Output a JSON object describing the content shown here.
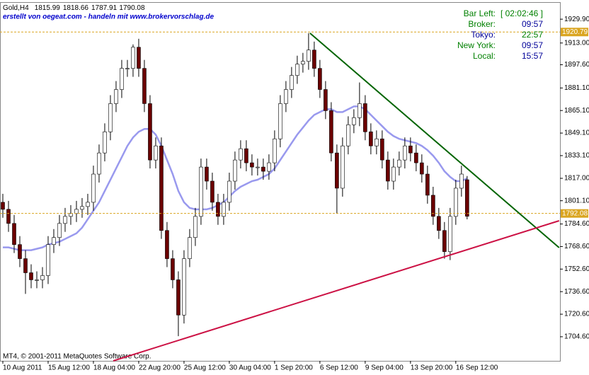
{
  "chart_data": {
    "type": "candlestick",
    "title": "Gold,H4",
    "subtitle": "erstellt von oegeat.com - handeln mit www.brokervorschlag.de",
    "footer": "MT4, © 2001-2011 MetaQuotes Software Corp.",
    "up_color": "#ffffff",
    "down_color": "#6b0000",
    "ylim": [
      1687.5,
      1941
    ],
    "xlim": [
      -0.5,
      98.4
    ],
    "yticks": [
      {
        "value": 1929.9,
        "label": "1929.90"
      },
      {
        "value": 1913,
        "label": "1913.00"
      },
      {
        "value": 1897.6,
        "label": "1897.60"
      },
      {
        "value": 1881.1,
        "label": "1881.10"
      },
      {
        "value": 1865.1,
        "label": "1865.10"
      },
      {
        "value": 1849.1,
        "label": "1849.10"
      },
      {
        "value": 1833.1,
        "label": "1833.10"
      },
      {
        "value": 1817,
        "label": "1817.00"
      },
      {
        "value": 1801.1,
        "label": "1801.10"
      },
      {
        "value": 1784.6,
        "label": "1784.60"
      },
      {
        "value": 1768.6,
        "label": "1768.60"
      },
      {
        "value": 1752.6,
        "label": "1752.60"
      },
      {
        "value": 1736.6,
        "label": "1736.60"
      },
      {
        "value": 1720.6,
        "label": "1720.60"
      },
      {
        "value": 1704.6,
        "label": "1704.60"
      }
    ],
    "xticks": [
      {
        "value": 0,
        "label": "10 Aug 2011"
      },
      {
        "value": 8,
        "label": "15 Aug 12:00"
      },
      {
        "value": 16,
        "label": "18 Aug 04:00"
      },
      {
        "value": 24,
        "label": "22 Aug 20:00"
      },
      {
        "value": 32,
        "label": "25 Aug 12:00"
      },
      {
        "value": 40,
        "label": "30 Aug 04:00"
      },
      {
        "value": 48,
        "label": "1 Sep 20:00"
      },
      {
        "value": 56,
        "label": "6 Sep 12:00"
      },
      {
        "value": 64,
        "label": "9 Sep 04:00"
      },
      {
        "value": 72,
        "label": "13 Sep 20:00"
      },
      {
        "value": 80,
        "label": "16 Sep 12:00"
      }
    ],
    "open": [
      1800,
      1795,
      1785,
      1770,
      1760,
      1750,
      1745,
      1745,
      1748,
      1770,
      1775,
      1785,
      1790,
      1792,
      1795,
      1797,
      1800,
      1820,
      1835,
      1850,
      1870,
      1880,
      1895,
      1895,
      1910,
      1895,
      1870,
      1830,
      1840,
      1780,
      1760,
      1745,
      1720,
      1760,
      1775,
      1790,
      1825,
      1815,
      1800,
      1790,
      1800,
      1815,
      1830,
      1838,
      1828,
      1825,
      1825,
      1822,
      1828,
      1845,
      1870,
      1880,
      1890,
      1898,
      1900,
      1908,
      1895,
      1880,
      1865,
      1835,
      1810,
      1840,
      1855,
      1860,
      1870,
      1850,
      1840,
      1845,
      1830,
      1815,
      1825,
      1830,
      1840,
      1835,
      1828,
      1820,
      1805,
      1790,
      1780,
      1765,
      1790,
      1810,
      1815.99
    ],
    "high": [
      1806,
      1801,
      1791,
      1776,
      1766,
      1756,
      1751,
      1754,
      1776,
      1781,
      1791,
      1796,
      1798,
      1801,
      1803,
      1806,
      1826,
      1841,
      1856,
      1876,
      1886,
      1901,
      1901,
      1912,
      1916,
      1901,
      1876,
      1846,
      1846,
      1786,
      1766,
      1751,
      1766,
      1781,
      1796,
      1831,
      1831,
      1821,
      1806,
      1806,
      1821,
      1836,
      1844,
      1844,
      1834,
      1831,
      1831,
      1834,
      1851,
      1876,
      1886,
      1896,
      1904,
      1906,
      1920,
      1914,
      1901,
      1886,
      1871,
      1841,
      1846,
      1861,
      1866,
      1885,
      1876,
      1856,
      1851,
      1851,
      1836,
      1831,
      1836,
      1846,
      1846,
      1841,
      1834,
      1826,
      1811,
      1796,
      1786,
      1796,
      1816,
      1826,
      1818.66
    ],
    "low": [
      1789,
      1779,
      1764,
      1754,
      1735,
      1739,
      1739,
      1739,
      1742,
      1764,
      1769,
      1779,
      1784,
      1786,
      1789,
      1791,
      1794,
      1814,
      1829,
      1844,
      1864,
      1874,
      1889,
      1889,
      1889,
      1864,
      1824,
      1824,
      1774,
      1754,
      1739,
      1705,
      1714,
      1754,
      1769,
      1784,
      1809,
      1794,
      1784,
      1784,
      1794,
      1809,
      1824,
      1822,
      1819,
      1819,
      1816,
      1816,
      1822,
      1839,
      1864,
      1874,
      1884,
      1892,
      1894,
      1889,
      1874,
      1859,
      1829,
      1792,
      1804,
      1834,
      1849,
      1854,
      1844,
      1834,
      1834,
      1824,
      1809,
      1809,
      1819,
      1824,
      1829,
      1822,
      1814,
      1799,
      1784,
      1774,
      1760,
      1759,
      1784,
      1804,
      1787.91
    ],
    "close": [
      1795,
      1785,
      1770,
      1760,
      1750,
      1745,
      1745,
      1748,
      1770,
      1775,
      1785,
      1790,
      1792,
      1795,
      1797,
      1800,
      1820,
      1835,
      1850,
      1870,
      1880,
      1895,
      1895,
      1910,
      1895,
      1870,
      1830,
      1840,
      1780,
      1760,
      1745,
      1720,
      1760,
      1775,
      1790,
      1825,
      1815,
      1800,
      1790,
      1800,
      1815,
      1830,
      1838,
      1828,
      1825,
      1825,
      1822,
      1828,
      1845,
      1870,
      1880,
      1890,
      1898,
      1900,
      1908,
      1895,
      1880,
      1865,
      1835,
      1810,
      1840,
      1855,
      1860,
      1870,
      1850,
      1840,
      1845,
      1830,
      1815,
      1825,
      1830,
      1840,
      1835,
      1828,
      1820,
      1805,
      1790,
      1780,
      1765,
      1790,
      1810,
      1820,
      1790.08
    ],
    "series": [
      {
        "color": "#9999ee",
        "values": [
          1768,
          1768,
          1767,
          1766,
          1766,
          1766,
          1767,
          1768,
          1770,
          1771,
          1772,
          1774,
          1776,
          1778,
          1782,
          1788,
          1794,
          1800,
          1808,
          1816,
          1824,
          1832,
          1840,
          1846,
          1850,
          1852,
          1852,
          1848,
          1840,
          1830,
          1820,
          1808,
          1800,
          1796,
          1795,
          1795,
          1795,
          1796,
          1798,
          1800,
          1804,
          1808,
          1811,
          1813,
          1815,
          1816,
          1818,
          1820,
          1824,
          1830,
          1836,
          1842,
          1848,
          1853,
          1858,
          1862,
          1864,
          1866,
          1866,
          1864,
          1864,
          1866,
          1868,
          1868,
          1866,
          1862,
          1858,
          1854,
          1850,
          1847,
          1845,
          1844,
          1843,
          1842,
          1840,
          1837,
          1833,
          1828,
          1822,
          1818,
          1815,
          1815,
          1817
        ]
      }
    ],
    "hlines": [
      {
        "value": 1920.79,
        "color": "#daa520"
      },
      {
        "value": 1792.08,
        "color": "#daa520"
      }
    ],
    "trendlines": [
      {
        "color": "#006400",
        "x": [
          54.25,
          98.25
        ],
        "y": [
          1920,
          1767.8
        ]
      },
      {
        "color": "#cc1144",
        "x": [
          19.5,
          98.25
        ],
        "y": [
          1687.5,
          1786.9
        ]
      }
    ],
    "info": [
      {
        "label": "Bar Left:",
        "value": "[ 02:02:46 ]",
        "label_color": "#008000",
        "value_color": "#008000"
      },
      {
        "label": "Broker:",
        "value": "09:57",
        "label_color": "#008000",
        "value_color": "#000099"
      },
      {
        "label": "Tokyo:",
        "value": "22:57",
        "label_color": "#000099",
        "value_color": "#008000"
      },
      {
        "label": "New York:",
        "value": "09:57",
        "label_color": "#008000",
        "value_color": "#000099"
      },
      {
        "label": "Local:",
        "value": "15:57",
        "label_color": "#008000",
        "value_color": "#000099"
      }
    ]
  }
}
